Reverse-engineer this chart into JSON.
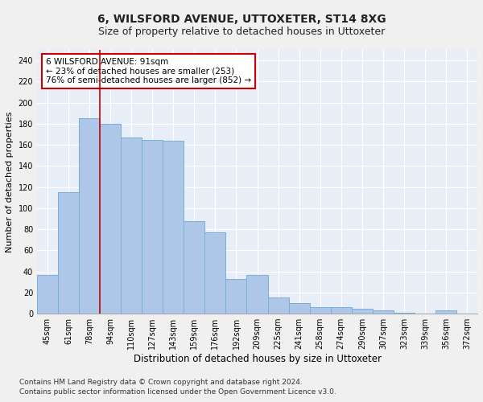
{
  "title1": "6, WILSFORD AVENUE, UTTOXETER, ST14 8XG",
  "title2": "Size of property relative to detached houses in Uttoxeter",
  "xlabel": "Distribution of detached houses by size in Uttoxeter",
  "ylabel": "Number of detached properties",
  "categories": [
    "45sqm",
    "61sqm",
    "78sqm",
    "94sqm",
    "110sqm",
    "127sqm",
    "143sqm",
    "159sqm",
    "176sqm",
    "192sqm",
    "209sqm",
    "225sqm",
    "241sqm",
    "258sqm",
    "274sqm",
    "290sqm",
    "307sqm",
    "323sqm",
    "339sqm",
    "356sqm",
    "372sqm"
  ],
  "values": [
    37,
    115,
    185,
    180,
    167,
    165,
    164,
    88,
    77,
    33,
    37,
    15,
    10,
    6,
    6,
    5,
    3,
    1,
    0,
    3,
    0
  ],
  "bar_color": "#aec6e8",
  "bar_edge_color": "#7aafd4",
  "vline_color": "#cc0000",
  "annotation_text": "6 WILSFORD AVENUE: 91sqm\n← 23% of detached houses are smaller (253)\n76% of semi-detached houses are larger (852) →",
  "annotation_box_color": "#ffffff",
  "annotation_box_edge": "#cc0000",
  "ylim": [
    0,
    250
  ],
  "yticks": [
    0,
    20,
    40,
    60,
    80,
    100,
    120,
    140,
    160,
    180,
    200,
    220,
    240
  ],
  "footnote1": "Contains HM Land Registry data © Crown copyright and database right 2024.",
  "footnote2": "Contains public sector information licensed under the Open Government Licence v3.0.",
  "bg_color": "#e8eef8",
  "fig_bg_color": "#f0f0f0",
  "grid_color": "#ffffff",
  "title1_fontsize": 10,
  "title2_fontsize": 9,
  "xlabel_fontsize": 8.5,
  "ylabel_fontsize": 8,
  "tick_fontsize": 7,
  "annot_fontsize": 7.5,
  "footnote_fontsize": 6.5
}
